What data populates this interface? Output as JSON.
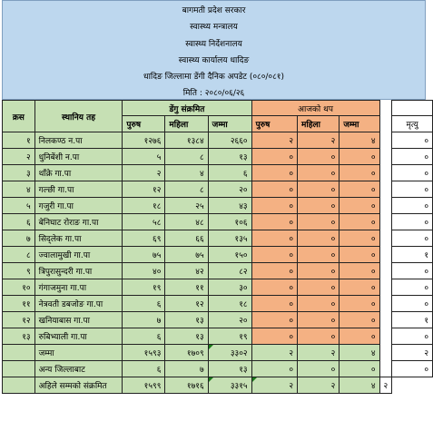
{
  "header": {
    "line1": "बागमती प्रदेश सरकार",
    "line2": "स्वास्थ्य मन्त्रालय",
    "line3": "स्वास्थ्य निर्देशनालय",
    "line4": "स्वास्थ्य कार्यालय धादिङ",
    "line5": "धादिङ जिल्लामा डेंगी दैनिक अपडेट (०८०/०८१)",
    "line6": "मिति : २०८०/०६/२६"
  },
  "columns": {
    "sn": "क्रस",
    "local": "स्थानिय तह",
    "dengue_group": "डेंगु संक्रमित",
    "today_group": "आजको थप",
    "male": "पुरुष",
    "female": "महिला",
    "total": "जम्मा",
    "death": "मृत्यु"
  },
  "rows": [
    {
      "sn": "१",
      "name": "निलकण्ठ न.पा",
      "m": "१२७६",
      "f": "१३८४",
      "t": "२६६०",
      "tm": "२",
      "tf": "२",
      "tt": "४",
      "d": "०"
    },
    {
      "sn": "२",
      "name": "धुनिबेंशी न.पा",
      "m": "५",
      "f": "८",
      "t": "१३",
      "tm": "०",
      "tf": "०",
      "tt": "०",
      "d": "०"
    },
    {
      "sn": "३",
      "name": "थाँक्रे गा.पा",
      "m": "२",
      "f": "४",
      "t": "६",
      "tm": "०",
      "tf": "०",
      "tt": "०",
      "d": "०"
    },
    {
      "sn": "४",
      "name": "गल्छी गा.पा",
      "m": "१२",
      "f": "८",
      "t": "२०",
      "tm": "०",
      "tf": "०",
      "tt": "०",
      "d": "०"
    },
    {
      "sn": "५",
      "name": "गजुरी गा.पा",
      "m": "१८",
      "f": "२५",
      "t": "४३",
      "tm": "०",
      "tf": "०",
      "tt": "०",
      "d": "०"
    },
    {
      "sn": "६",
      "name": "बेनिघाट रोराङ गा.पा",
      "m": "५८",
      "f": "४८",
      "t": "१०६",
      "tm": "०",
      "tf": "०",
      "tt": "०",
      "d": "०"
    },
    {
      "sn": "७",
      "name": "सिद्लेक गा.पा",
      "m": "६९",
      "f": "६६",
      "t": "१३५",
      "tm": "०",
      "tf": "०",
      "tt": "०",
      "d": "०"
    },
    {
      "sn": "८",
      "name": "ज्वालामुखी गा.पा",
      "m": "७५",
      "f": "७५",
      "t": "१५०",
      "tm": "०",
      "tf": "०",
      "tt": "०",
      "d": "१"
    },
    {
      "sn": "९",
      "name": "त्रिपुरासुन्दरी गा.पा",
      "m": "४०",
      "f": "४२",
      "t": "८२",
      "tm": "०",
      "tf": "०",
      "tt": "०",
      "d": "०"
    },
    {
      "sn": "१०",
      "name": "गंगाजमुना गा.पा",
      "m": "१९",
      "f": "११",
      "t": "३०",
      "tm": "०",
      "tf": "०",
      "tt": "०",
      "d": "०"
    },
    {
      "sn": "११",
      "name": "नेत्रवती डबजोङ गा.पा",
      "m": "६",
      "f": "१२",
      "t": "१८",
      "tm": "०",
      "tf": "०",
      "tt": "०",
      "d": "०"
    },
    {
      "sn": "१२",
      "name": "खनियाबास गा.पा",
      "m": "७",
      "f": "१३",
      "t": "२०",
      "tm": "०",
      "tf": "०",
      "tt": "०",
      "d": "१"
    },
    {
      "sn": "१३",
      "name": "रुबिभ्याली गा.पा",
      "m": "६",
      "f": "१३",
      "t": "१९",
      "tm": "०",
      "tf": "०",
      "tt": "०",
      "d": "०"
    }
  ],
  "summary": [
    {
      "name": "जम्मा",
      "m": "१५९३",
      "f": "१७०९",
      "t": "३३०२",
      "tm": "२",
      "tf": "२",
      "tt": "४",
      "d": "२"
    },
    {
      "name": "अन्य जिल्लाबाट",
      "m": "६",
      "f": "७",
      "t": "१३",
      "tm": "०",
      "tf": "०",
      "tt": "०",
      "d": "०"
    },
    {
      "name": "अहिले सम्मको संक्रमित",
      "m": "१५९९",
      "f": "१७१६",
      "t": "३३१५",
      "tm": "२",
      "tf": "२",
      "tt": "४",
      "d": "२"
    }
  ],
  "colors": {
    "header": "#bdd7ee",
    "green": "#c6e0b4",
    "orange": "#f4b183"
  }
}
